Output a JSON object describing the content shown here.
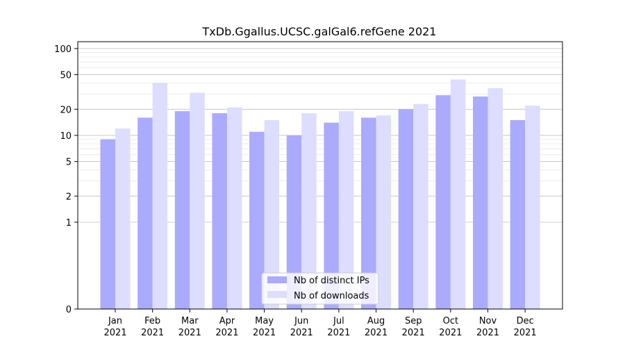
{
  "chart_data": {
    "type": "bar",
    "title": "TxDb.Ggallus.UCSC.galGal6.refGene 2021",
    "xlabel": "",
    "ylabel": "",
    "yscale": "symlog",
    "ylim": [
      0,
      120
    ],
    "yticks": [
      0,
      1,
      2,
      5,
      10,
      20,
      50,
      100
    ],
    "grid": "horizontal",
    "legend_position": "bottom-center",
    "categories": [
      {
        "month": "Jan",
        "year": "2021"
      },
      {
        "month": "Feb",
        "year": "2021"
      },
      {
        "month": "Mar",
        "year": "2021"
      },
      {
        "month": "Apr",
        "year": "2021"
      },
      {
        "month": "May",
        "year": "2021"
      },
      {
        "month": "Jun",
        "year": "2021"
      },
      {
        "month": "Jul",
        "year": "2021"
      },
      {
        "month": "Aug",
        "year": "2021"
      },
      {
        "month": "Sep",
        "year": "2021"
      },
      {
        "month": "Oct",
        "year": "2021"
      },
      {
        "month": "Nov",
        "year": "2021"
      },
      {
        "month": "Dec",
        "year": "2021"
      }
    ],
    "series": [
      {
        "name": "Nb of distinct IPs",
        "color": "#aaaaff",
        "values": [
          9,
          16,
          19,
          18,
          11,
          10,
          14,
          16,
          20,
          29,
          28,
          15
        ]
      },
      {
        "name": "Nb of downloads",
        "color": "#ddddff",
        "values": [
          12,
          40,
          31,
          21,
          15,
          18,
          19,
          17,
          23,
          44,
          35,
          22
        ]
      }
    ]
  }
}
